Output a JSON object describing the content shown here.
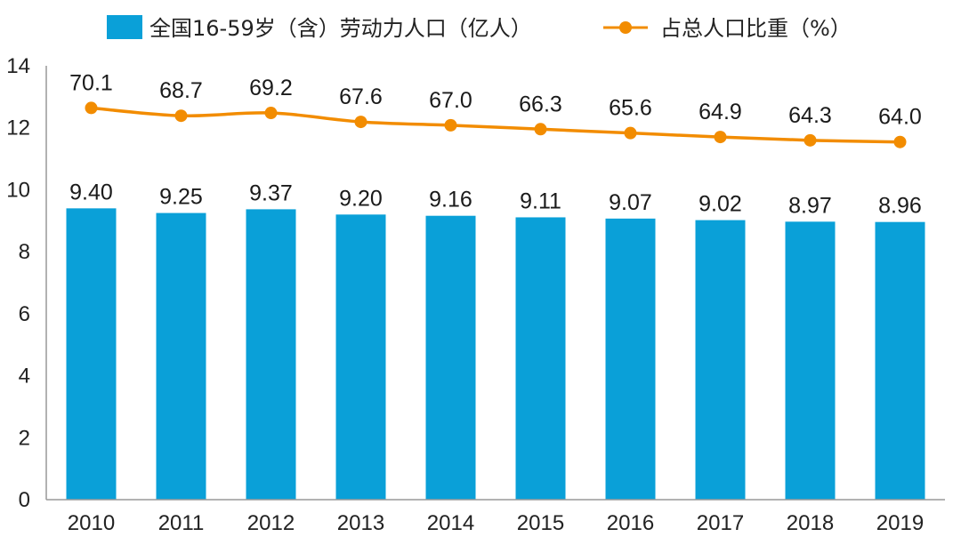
{
  "chart_data": {
    "type": "bar",
    "categories": [
      "2010",
      "2011",
      "2012",
      "2013",
      "2014",
      "2015",
      "2016",
      "2017",
      "2018",
      "2019"
    ],
    "series": [
      {
        "name": "全国16-59岁（含）劳动力人口（亿人）",
        "type": "bar",
        "color": "#0aa0d8",
        "values": [
          9.4,
          9.25,
          9.37,
          9.2,
          9.16,
          9.11,
          9.07,
          9.02,
          8.97,
          8.96
        ],
        "labels": [
          "9.40",
          "9.25",
          "9.37",
          "9.20",
          "9.16",
          "9.11",
          "9.07",
          "9.02",
          "8.97",
          "8.96"
        ]
      },
      {
        "name": "占总人口比重（%）",
        "type": "line",
        "color": "#f28c00",
        "values": [
          70.1,
          68.7,
          69.2,
          67.6,
          67.0,
          66.3,
          65.6,
          64.9,
          64.3,
          64.0
        ],
        "labels": [
          "70.1",
          "68.7",
          "69.2",
          "67.6",
          "67.0",
          "66.3",
          "65.6",
          "64.9",
          "64.3",
          "64.0"
        ]
      }
    ],
    "ylim": [
      0,
      14
    ],
    "yticks": [
      "0",
      "2",
      "4",
      "6",
      "8",
      "10",
      "12",
      "14"
    ],
    "legend": "top",
    "grid": false
  }
}
